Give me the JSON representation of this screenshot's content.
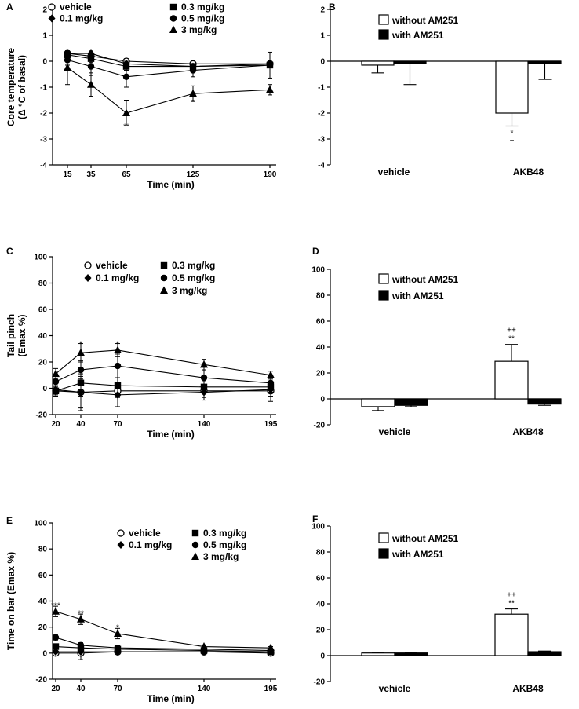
{
  "chart_data": [
    {
      "panel": "A",
      "type": "line",
      "xlabel": "Time (min)",
      "ylabel": [
        "Core temperature",
        "(Δ °C of basal)"
      ],
      "ylim": [
        -4,
        2
      ],
      "yticks": [
        -4,
        -3,
        -2,
        -1,
        0,
        1,
        2
      ],
      "x": [
        15,
        35,
        65,
        125,
        190
      ],
      "series": [
        {
          "name": "vehicle",
          "marker": "circle-open",
          "values": [
            0.3,
            0.2,
            0.0,
            -0.1,
            -0.1
          ],
          "errors": [
            0.1,
            0.1,
            0.1,
            0.1,
            0.1
          ]
        },
        {
          "name": "0.1 mg/kg",
          "marker": "diamond",
          "values": [
            0.3,
            0.3,
            -0.1,
            -0.2,
            -0.1
          ],
          "errors": [
            0.1,
            0.1,
            0.1,
            0.1,
            0.1
          ]
        },
        {
          "name": "0.3 mg/kg",
          "marker": "square",
          "values": [
            0.25,
            0.1,
            -0.2,
            -0.2,
            -0.15
          ],
          "errors": [
            0.1,
            0.15,
            0.15,
            0.1,
            0.1
          ]
        },
        {
          "name": "0.5 mg/kg",
          "marker": "circle",
          "values": [
            0.05,
            -0.2,
            -0.6,
            -0.35,
            -0.15
          ],
          "errors": [
            0.2,
            0.35,
            0.4,
            0.25,
            0.5
          ]
        },
        {
          "name": "3 mg/kg",
          "marker": "triangle",
          "values": [
            -0.25,
            -0.9,
            -2.0,
            -1.25,
            -1.1
          ],
          "errors": [
            0.65,
            0.45,
            0.5,
            0.3,
            0.2
          ]
        }
      ],
      "annotations": [
        {
          "x": 65,
          "y": -2.5,
          "text": "**"
        },
        {
          "x": 125,
          "y": -1.55,
          "text": "*"
        }
      ]
    },
    {
      "panel": "B",
      "type": "bar",
      "categories": [
        "vehicle",
        "AKB48"
      ],
      "ylim": [
        -4,
        2
      ],
      "yticks": [
        -4,
        -3,
        -2,
        -1,
        0,
        1,
        2
      ],
      "series": [
        {
          "name": "without AM251",
          "fill": "#ffffff",
          "values": [
            -0.15,
            -2.0
          ],
          "errors": [
            0.3,
            0.5
          ]
        },
        {
          "name": "with AM251",
          "fill": "#000000",
          "values": [
            -0.1,
            -0.1
          ],
          "errors": [
            0.8,
            0.6
          ]
        }
      ],
      "annotations": [
        {
          "category": 1,
          "series": 0,
          "lines": [
            "*",
            "+"
          ]
        }
      ]
    },
    {
      "panel": "C",
      "type": "line",
      "xlabel": "Time (min)",
      "ylabel": [
        "Tail pinch",
        "(Emax %)"
      ],
      "ylim": [
        -20,
        100
      ],
      "yticks": [
        -20,
        0,
        20,
        40,
        60,
        80,
        100
      ],
      "x": [
        20,
        40,
        70,
        140,
        195
      ],
      "series": [
        {
          "name": "vehicle",
          "marker": "circle-open",
          "values": [
            -2,
            -3,
            -2,
            -2,
            -2
          ],
          "errors": [
            3,
            12,
            5,
            5,
            4
          ]
        },
        {
          "name": "0.1 mg/kg",
          "marker": "diamond",
          "values": [
            -1,
            -3,
            -5,
            -3,
            -1
          ],
          "errors": [
            5,
            14,
            9,
            6,
            9
          ]
        },
        {
          "name": "0.3 mg/kg",
          "marker": "square",
          "values": [
            -2,
            4,
            2,
            1,
            1
          ],
          "errors": [
            4,
            10,
            6,
            4,
            4
          ]
        },
        {
          "name": "0.5 mg/kg",
          "marker": "circle",
          "values": [
            5,
            14,
            17,
            8,
            4
          ],
          "errors": [
            5,
            7,
            9,
            6,
            5
          ]
        },
        {
          "name": "3 mg/kg",
          "marker": "triangle",
          "values": [
            11,
            27,
            29,
            18,
            10
          ],
          "errors": [
            4,
            7,
            5,
            4,
            3
          ]
        }
      ],
      "annotations": [
        {
          "x": 40,
          "y": 34,
          "text": "*"
        },
        {
          "x": 70,
          "y": 34,
          "text": "*"
        }
      ]
    },
    {
      "panel": "D",
      "type": "bar",
      "categories": [
        "vehicle",
        "AKB48"
      ],
      "ylim": [
        -20,
        100
      ],
      "yticks": [
        -20,
        0,
        20,
        40,
        60,
        80,
        100
      ],
      "series": [
        {
          "name": "without AM251",
          "fill": "#ffffff",
          "values": [
            -6,
            29
          ],
          "errors": [
            3,
            13
          ]
        },
        {
          "name": "with AM251",
          "fill": "#000000",
          "values": [
            -5,
            -4
          ],
          "errors": [
            1,
            1
          ]
        }
      ],
      "annotations": [
        {
          "category": 1,
          "series": 0,
          "lines": [
            "++",
            "**"
          ]
        }
      ]
    },
    {
      "panel": "E",
      "type": "line",
      "xlabel": "Time (min)",
      "ylabel": [
        "Time on bar (Emax %)"
      ],
      "ylim": [
        -20,
        100
      ],
      "yticks": [
        -20,
        0,
        20,
        40,
        60,
        80,
        100
      ],
      "x": [
        20,
        40,
        70,
        140,
        195
      ],
      "series": [
        {
          "name": "vehicle",
          "marker": "circle-open",
          "values": [
            0,
            0,
            1,
            1,
            0
          ],
          "errors": [
            1,
            5,
            1,
            1,
            1
          ]
        },
        {
          "name": "0.1 mg/kg",
          "marker": "diamond",
          "values": [
            1,
            1,
            1,
            1,
            1
          ],
          "errors": [
            1,
            1,
            1,
            1,
            1
          ]
        },
        {
          "name": "0.3 mg/kg",
          "marker": "square",
          "values": [
            5,
            4,
            3,
            2,
            1
          ],
          "errors": [
            2,
            2,
            2,
            1,
            1
          ]
        },
        {
          "name": "0.5 mg/kg",
          "marker": "circle",
          "values": [
            12,
            6,
            4,
            3,
            2
          ],
          "errors": [
            2,
            2,
            2,
            1,
            1
          ]
        },
        {
          "name": "3 mg/kg",
          "marker": "triangle",
          "values": [
            32,
            26,
            15,
            5,
            4
          ],
          "errors": [
            4,
            4,
            4,
            1,
            1
          ]
        }
      ],
      "annotations": [
        {
          "x": 20,
          "y": 37,
          "text": "***"
        },
        {
          "x": 40,
          "y": 31,
          "text": "**"
        },
        {
          "x": 70,
          "y": 20,
          "text": "*"
        }
      ]
    },
    {
      "panel": "F",
      "type": "bar",
      "categories": [
        "vehicle",
        "AKB48"
      ],
      "ylim": [
        -20,
        100
      ],
      "yticks": [
        -20,
        0,
        20,
        40,
        60,
        80,
        100
      ],
      "series": [
        {
          "name": "without AM251",
          "fill": "#ffffff",
          "values": [
            2,
            32
          ],
          "errors": [
            0.5,
            4
          ]
        },
        {
          "name": "with AM251",
          "fill": "#000000",
          "values": [
            2,
            3
          ],
          "errors": [
            0.5,
            0.5
          ]
        }
      ],
      "annotations": [
        {
          "category": 1,
          "series": 0,
          "lines": [
            "++",
            "**"
          ]
        }
      ]
    }
  ]
}
